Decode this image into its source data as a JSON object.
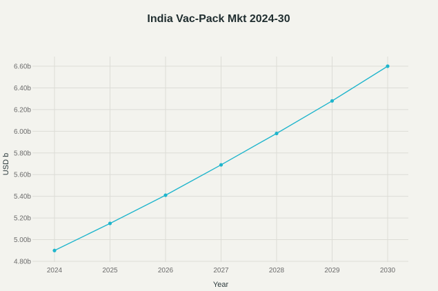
{
  "chart_data": {
    "type": "line",
    "title": "India Vac-Pack Mkt 2024-30",
    "xlabel": "Year",
    "ylabel": "USD b",
    "x": [
      "2024",
      "2025",
      "2026",
      "2027",
      "2028",
      "2029",
      "2030"
    ],
    "series": [
      {
        "values": [
          4.9,
          5.15,
          5.41,
          5.69,
          5.98,
          6.28,
          6.6
        ]
      }
    ],
    "ylim": [
      4.8,
      6.6
    ],
    "yticks": [
      "4.80b",
      "5.00b",
      "5.20b",
      "5.40b",
      "5.60b",
      "5.80b",
      "6.00b",
      "6.20b",
      "6.40b",
      "6.60b"
    ],
    "ytick_values": [
      4.8,
      5.0,
      5.2,
      5.4,
      5.6,
      5.8,
      6.0,
      6.2,
      6.4,
      6.6
    ],
    "grid": true,
    "markers": true,
    "colors": {
      "line": "#1fb5cc",
      "grid": "#dcdcd6",
      "background": "#f3f3ee"
    }
  }
}
